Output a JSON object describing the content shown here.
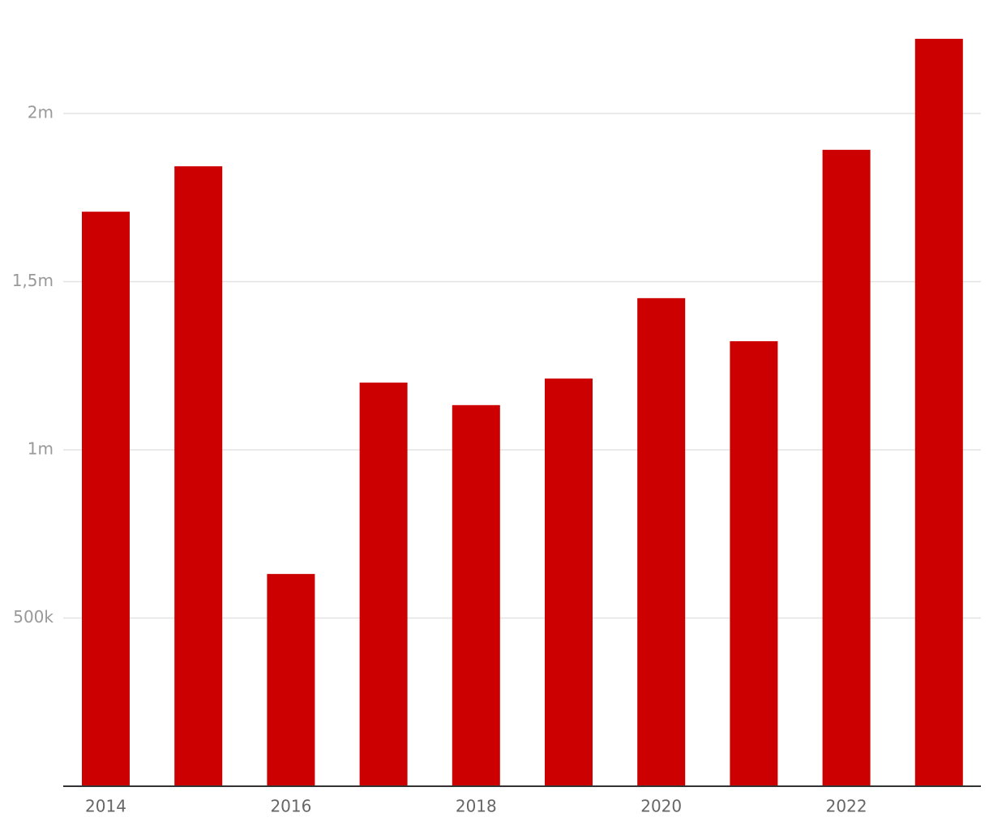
{
  "chart_data": {
    "type": "bar",
    "categories": [
      "2014",
      null,
      "2016",
      null,
      "2018",
      null,
      "2020",
      null,
      "2022",
      null
    ],
    "values": [
      1708000,
      1843000,
      631000,
      1200000,
      1133000,
      1212000,
      1451000,
      1323000,
      1892000,
      2222000
    ],
    "color": "#cc0000",
    "ylim": [
      0,
      2250000
    ],
    "yticks": [
      {
        "value": 500000,
        "label": "500k"
      },
      {
        "value": 1000000,
        "label": "1m"
      },
      {
        "value": 1500000,
        "label": "1,5m"
      },
      {
        "value": 2000000,
        "label": "2m"
      }
    ],
    "grid": true
  }
}
